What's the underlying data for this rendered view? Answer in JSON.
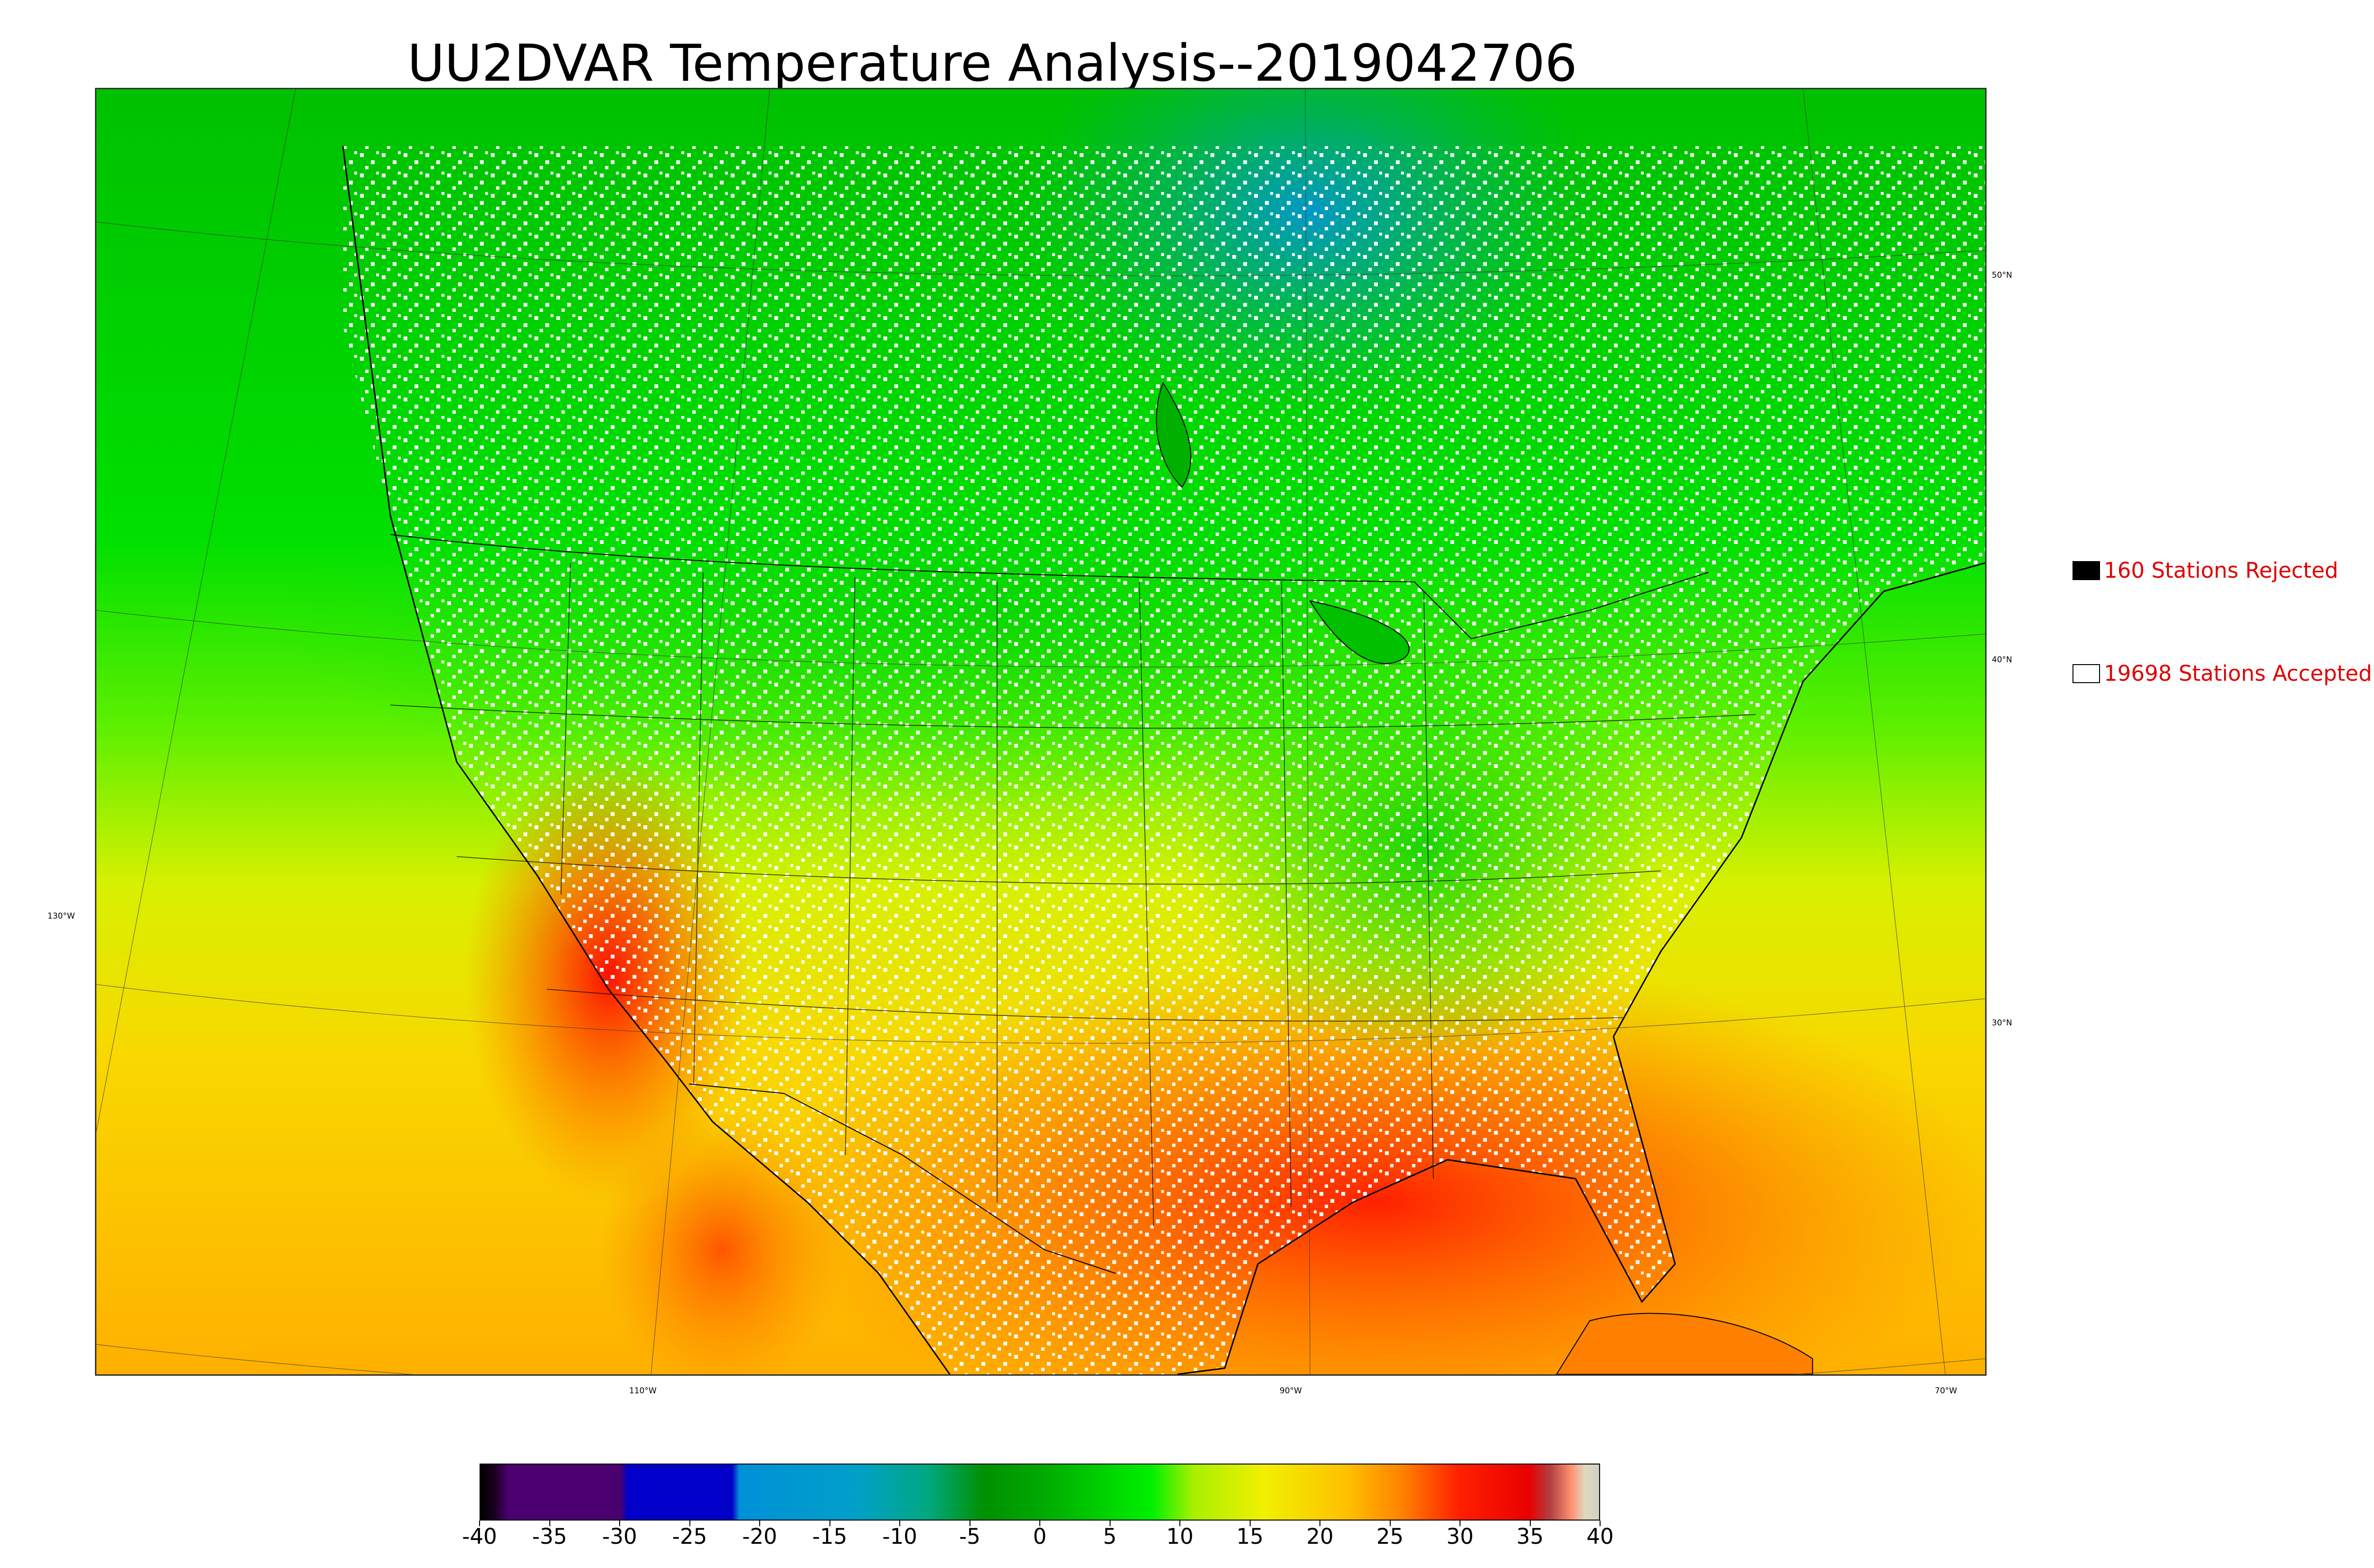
{
  "title": "UU2DVAR Temperature Analysis--2019042706",
  "map": {
    "longitude_labels": [
      "130°W",
      "110°W",
      "90°W",
      "70°W"
    ],
    "latitude_labels": [
      "50°N",
      "40°N",
      "30°N"
    ]
  },
  "legend": {
    "rejected": {
      "label": "160 Stations Rejected",
      "swatch_color": "#000000"
    },
    "accepted": {
      "label": "19698 Stations Accepted",
      "swatch_color": "#ffffff"
    }
  },
  "colorbar": {
    "tick_labels": [
      "-40",
      "-35",
      "-30",
      "-25",
      "-20",
      "-15",
      "-10",
      "-5",
      "0",
      "5",
      "10",
      "15",
      "20",
      "25",
      "30",
      "35",
      "40"
    ],
    "stops": [
      {
        "value": -40,
        "color": "#000000"
      },
      {
        "value": -39,
        "color": "#1a0020"
      },
      {
        "value": -38,
        "color": "#4b0070"
      },
      {
        "value": -30,
        "color": "#4b0070"
      },
      {
        "value": -29.5,
        "color": "#0000c8"
      },
      {
        "value": -22,
        "color": "#0000c8"
      },
      {
        "value": -21.5,
        "color": "#0090d8"
      },
      {
        "value": -13,
        "color": "#00a0c8"
      },
      {
        "value": -8,
        "color": "#00a880"
      },
      {
        "value": -4,
        "color": "#009000"
      },
      {
        "value": 0,
        "color": "#00a800"
      },
      {
        "value": 8,
        "color": "#00f000"
      },
      {
        "value": 11,
        "color": "#a8f000"
      },
      {
        "value": 16,
        "color": "#f0f000"
      },
      {
        "value": 22,
        "color": "#ffc000"
      },
      {
        "value": 26,
        "color": "#ff8000"
      },
      {
        "value": 30,
        "color": "#ff2000"
      },
      {
        "value": 35,
        "color": "#e80000"
      },
      {
        "value": 36.5,
        "color": "#b04040"
      },
      {
        "value": 38,
        "color": "#ff9070"
      },
      {
        "value": 39,
        "color": "#e0d8c0"
      },
      {
        "value": 40,
        "color": "#d0d0c0"
      }
    ]
  }
}
